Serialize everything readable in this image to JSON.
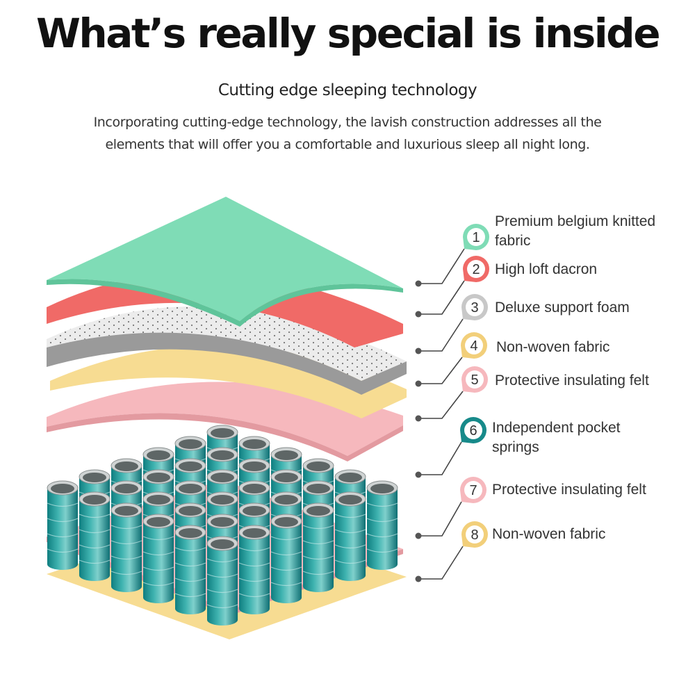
{
  "header": {
    "title": "What’s really special is inside",
    "subtitle": "Cutting edge sleeping technology",
    "description": "Incorporating cutting-edge technology, the lavish construction addresses all the elements that will offer you a comfortable and luxurious sleep all night long."
  },
  "layers": [
    {
      "number": "1",
      "label": "Premium belgium knitted fabric",
      "color": "#7fdcb6"
    },
    {
      "number": "2",
      "label": "High loft dacron",
      "color": "#f06a67"
    },
    {
      "number": "3",
      "label": "Deluxe support foam",
      "color": "#c8c8c8"
    },
    {
      "number": "4",
      "label": "Non-woven fabric",
      "color": "#f2cf7a"
    },
    {
      "number": "5",
      "label": "Protective insulating felt",
      "color": "#f6b8bd"
    },
    {
      "number": "6",
      "label": "Independent pocket springs",
      "color": "#178a8a"
    },
    {
      "number": "7",
      "label": "Protective insulating felt",
      "color": "#f6b8bd"
    },
    {
      "number": "8",
      "label": "Non-woven fabric",
      "color": "#f2cf7a"
    }
  ]
}
